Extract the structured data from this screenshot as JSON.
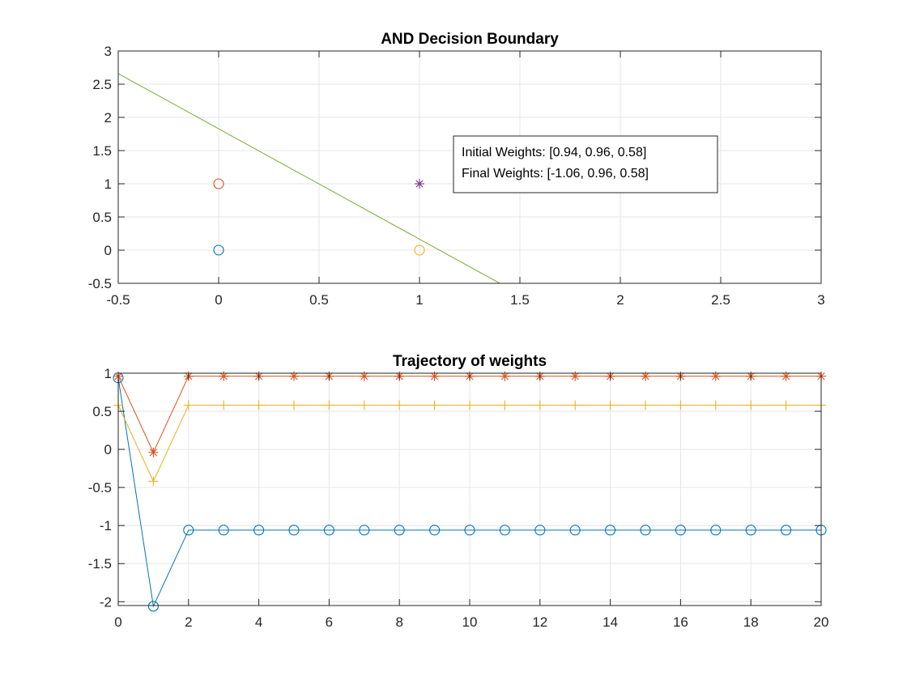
{
  "chart_data": [
    {
      "type": "scatter",
      "title": "AND Decision Boundary",
      "xlabel": "",
      "ylabel": "",
      "xlim": [
        -0.5,
        3
      ],
      "ylim": [
        -0.5,
        3
      ],
      "xticks": [
        -0.5,
        0,
        0.5,
        1,
        1.5,
        2,
        2.5,
        3
      ],
      "xtick_labels": [
        "-0.5",
        "0",
        "0.5",
        "1",
        "1.5",
        "2",
        "2.5",
        "3"
      ],
      "yticks": [
        -0.5,
        0,
        0.5,
        1,
        1.5,
        2,
        2.5,
        3
      ],
      "ytick_labels": [
        "-0.5",
        "0",
        "0.5",
        "1",
        "1.5",
        "2",
        "2.5",
        "3"
      ],
      "grid": true,
      "points": [
        {
          "x": 0,
          "y": 0,
          "marker": "o",
          "color": "#0072BD"
        },
        {
          "x": 0,
          "y": 1,
          "marker": "o",
          "color": "#D95319"
        },
        {
          "x": 1,
          "y": 0,
          "marker": "o",
          "color": "#EDB120"
        },
        {
          "x": 1,
          "y": 1,
          "marker": "*",
          "color": "#7E2F8E"
        }
      ],
      "boundary_line": {
        "x": [
          -0.5,
          1.4
        ],
        "y": [
          2.66,
          -0.5
        ],
        "color": "#77AC30"
      },
      "annotation": [
        "Initial Weights: [0.94, 0.96, 0.58]",
        "Final Weights: [-1.06, 0.96, 0.58]"
      ]
    },
    {
      "type": "line",
      "title": "Trajectory of weights",
      "xlabel": "",
      "ylabel": "",
      "xlim": [
        0,
        20
      ],
      "ylim": [
        -2.05,
        1
      ],
      "xticks": [
        0,
        2,
        4,
        6,
        8,
        10,
        12,
        14,
        16,
        18,
        20
      ],
      "xtick_labels": [
        "0",
        "2",
        "4",
        "6",
        "8",
        "10",
        "12",
        "14",
        "16",
        "18",
        "20"
      ],
      "yticks": [
        -2,
        -1.5,
        -1,
        -0.5,
        0,
        0.5,
        1
      ],
      "ytick_labels": [
        "-2",
        "-1.5",
        "-1",
        "-0.5",
        "0",
        "0.5",
        "1"
      ],
      "grid": true,
      "x": [
        0,
        1,
        2,
        3,
        4,
        5,
        6,
        7,
        8,
        9,
        10,
        11,
        12,
        13,
        14,
        15,
        16,
        17,
        18,
        19,
        20
      ],
      "series": [
        {
          "marker": "o",
          "color": "#0072BD",
          "values": [
            0.94,
            -2.06,
            -1.06,
            -1.06,
            -1.06,
            -1.06,
            -1.06,
            -1.06,
            -1.06,
            -1.06,
            -1.06,
            -1.06,
            -1.06,
            -1.06,
            -1.06,
            -1.06,
            -1.06,
            -1.06,
            -1.06,
            -1.06,
            -1.06
          ]
        },
        {
          "marker": "*",
          "color": "#D95319",
          "values": [
            0.96,
            -0.04,
            0.96,
            0.96,
            0.96,
            0.96,
            0.96,
            0.96,
            0.96,
            0.96,
            0.96,
            0.96,
            0.96,
            0.96,
            0.96,
            0.96,
            0.96,
            0.96,
            0.96,
            0.96,
            0.96
          ]
        },
        {
          "marker": "+",
          "color": "#EDB120",
          "values": [
            0.58,
            -0.42,
            0.58,
            0.58,
            0.58,
            0.58,
            0.58,
            0.58,
            0.58,
            0.58,
            0.58,
            0.58,
            0.58,
            0.58,
            0.58,
            0.58,
            0.58,
            0.58,
            0.58,
            0.58,
            0.58
          ]
        }
      ]
    }
  ]
}
